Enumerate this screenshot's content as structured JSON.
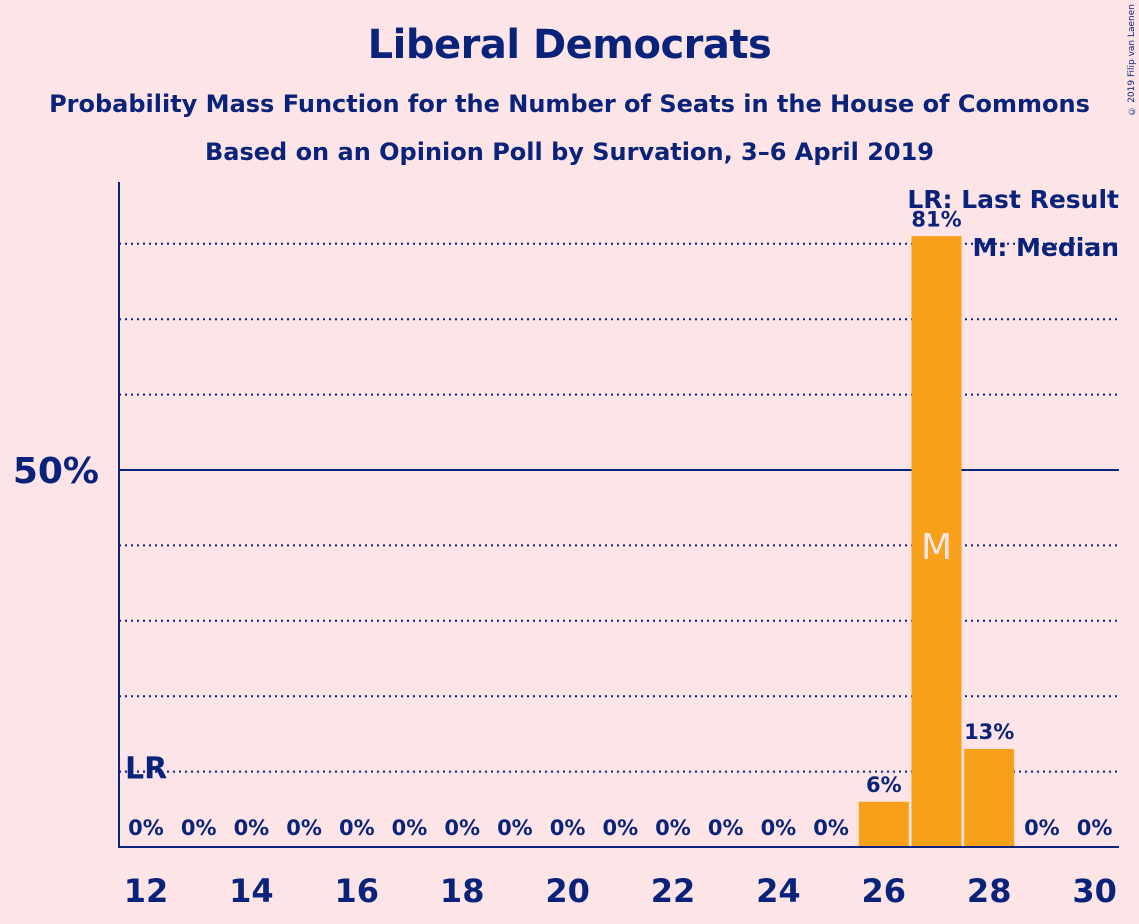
{
  "header": {
    "title": "Liberal Democrats",
    "subtitle": "Probability Mass Function for the Number of Seats in the House of Commons",
    "source": "Based on an Opinion Poll by Survation, 3–6 April 2019",
    "copyright": "© 2019 Filip van Laenen"
  },
  "legend": {
    "last_result": "LR: Last Result",
    "median": "M: Median"
  },
  "colors": {
    "background": "#fde4e6",
    "bar": "#f7a11a",
    "text": "#0a237a"
  },
  "chart_data": {
    "type": "bar",
    "categories": [
      12,
      13,
      14,
      15,
      16,
      17,
      18,
      19,
      20,
      21,
      22,
      23,
      24,
      25,
      26,
      27,
      28,
      29,
      30
    ],
    "values": [
      0,
      0,
      0,
      0,
      0,
      0,
      0,
      0,
      0,
      0,
      0,
      0,
      0,
      0,
      6,
      81,
      13,
      0,
      0
    ],
    "data_labels": [
      "0%",
      "0%",
      "0%",
      "0%",
      "0%",
      "0%",
      "0%",
      "0%",
      "0%",
      "0%",
      "0%",
      "0%",
      "0%",
      "0%",
      "6%",
      "81%",
      "13%",
      "0%",
      "0%"
    ],
    "x_tick_labels": [
      "12",
      "14",
      "16",
      "18",
      "20",
      "22",
      "24",
      "26",
      "28",
      "30"
    ],
    "y_tick_label": "50%",
    "ylim": [
      0,
      88
    ],
    "gridlines": [
      10,
      20,
      30,
      40,
      60,
      70,
      80
    ],
    "major_line": 50,
    "last_result_seat": 12,
    "last_result_level": 10,
    "last_result_label": "LR",
    "median_seat": 27,
    "median_label": "M",
    "xlabel": "",
    "ylabel": ""
  }
}
